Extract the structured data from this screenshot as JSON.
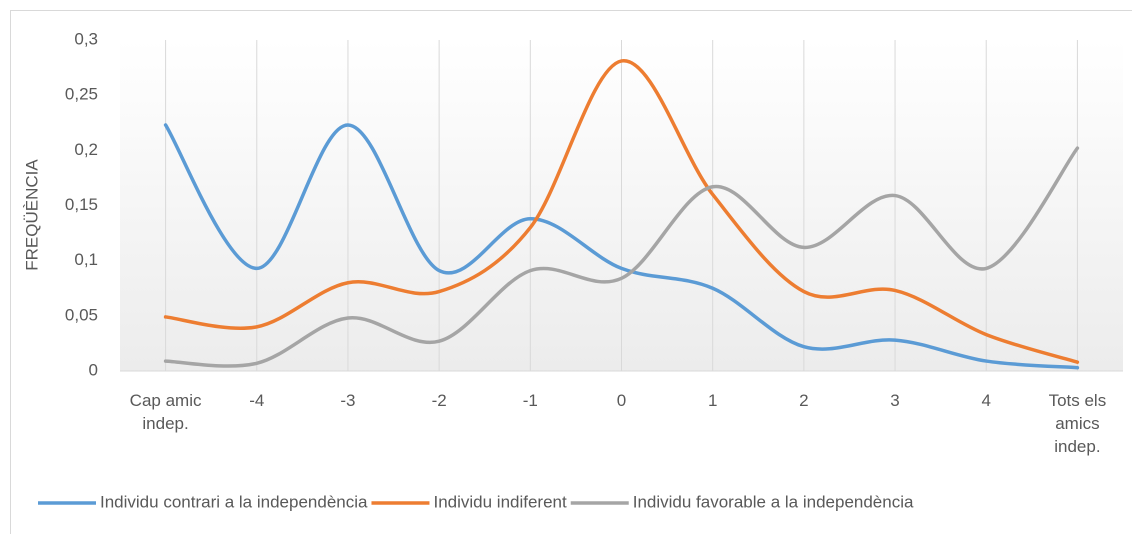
{
  "chart_data": {
    "type": "line",
    "y_label": "FREQÜÈNCIA",
    "categories": [
      "Cap amic indep.",
      "-4",
      "-3",
      "-2",
      "-1",
      "0",
      "1",
      "2",
      "3",
      "4",
      "Tots els amics indep."
    ],
    "series": [
      {
        "name": "Individu contrari a la independència",
        "color": "#5b9bd5",
        "values": [
          0.223,
          0.093,
          0.223,
          0.091,
          0.138,
          0.093,
          0.075,
          0.022,
          0.028,
          0.009,
          0.003
        ]
      },
      {
        "name": "Individu indiferent",
        "color": "#ed7d31",
        "values": [
          0.049,
          0.04,
          0.08,
          0.072,
          0.13,
          0.281,
          0.16,
          0.072,
          0.073,
          0.033,
          0.008
        ]
      },
      {
        "name": "Individu favorable a la independència",
        "color": "#a5a5a5",
        "values": [
          0.009,
          0.007,
          0.048,
          0.027,
          0.091,
          0.084,
          0.167,
          0.112,
          0.159,
          0.093,
          0.202
        ]
      }
    ],
    "ylim": [
      0,
      0.3
    ],
    "yticks": [
      {
        "value": 0,
        "label": "0"
      },
      {
        "value": 0.05,
        "label": "0,05"
      },
      {
        "value": 0.1,
        "label": "0,1"
      },
      {
        "value": 0.15,
        "label": "0,15"
      },
      {
        "value": 0.2,
        "label": "0,2"
      },
      {
        "value": 0.25,
        "label": "0,25"
      },
      {
        "value": 0.3,
        "label": "0,3"
      }
    ],
    "smooth": true,
    "grid": true,
    "legend": "bottom"
  }
}
